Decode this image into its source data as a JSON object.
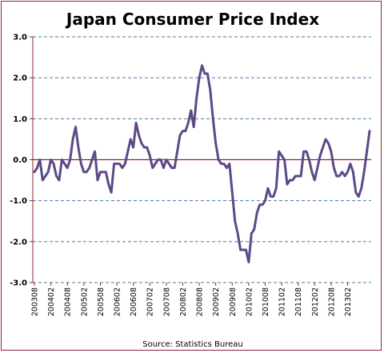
{
  "chart_data": {
    "type": "line",
    "title": "Japan Consumer Price Index",
    "source": "Source: Statistics Bureau",
    "xlabel": "",
    "ylabel": "",
    "ylim": [
      -3.0,
      3.0
    ],
    "yticks": [
      "3.0",
      "2.0",
      "1.0",
      "0.0",
      "-1.0",
      "-2.0",
      "-3.0"
    ],
    "ytick_values": [
      3,
      2,
      1,
      0,
      -1,
      -2,
      -3
    ],
    "xticks": [
      "200308",
      "200402",
      "200408",
      "200502",
      "200508",
      "200602",
      "200608",
      "200702",
      "200708",
      "200802",
      "200808",
      "200902",
      "200908",
      "201002",
      "201008",
      "201102",
      "201108",
      "201202",
      "201208",
      "201302"
    ],
    "grid": "horizontal-dashed",
    "zero_line_color": "#8b2530",
    "line_color": "#5b4a87",
    "grid_color": "#4a7ba6",
    "x_start": "2003-08",
    "x_end": "2013-08",
    "series": [
      {
        "name": "",
        "values": [
          -0.3,
          -0.2,
          0.0,
          -0.5,
          -0.4,
          -0.3,
          0.0,
          -0.1,
          -0.4,
          -0.5,
          0.0,
          -0.1,
          -0.2,
          0.0,
          0.5,
          0.8,
          0.3,
          -0.1,
          -0.3,
          -0.3,
          -0.2,
          0.0,
          0.2,
          -0.5,
          -0.3,
          -0.3,
          -0.3,
          -0.6,
          -0.8,
          -0.1,
          -0.1,
          -0.1,
          -0.2,
          -0.1,
          0.2,
          0.5,
          0.3,
          0.9,
          0.6,
          0.4,
          0.3,
          0.3,
          0.1,
          -0.2,
          -0.1,
          0.0,
          0.0,
          -0.2,
          0.0,
          -0.1,
          -0.2,
          -0.2,
          0.2,
          0.6,
          0.7,
          0.7,
          0.9,
          1.2,
          0.8,
          1.5,
          2.0,
          2.3,
          2.1,
          2.1,
          1.7,
          1.0,
          0.4,
          0.0,
          -0.1,
          -0.1,
          -0.2,
          -0.1,
          -0.8,
          -1.5,
          -1.8,
          -2.2,
          -2.2,
          -2.2,
          -2.5,
          -1.8,
          -1.7,
          -1.3,
          -1.1,
          -1.1,
          -1.0,
          -0.7,
          -0.9,
          -0.9,
          -0.7,
          0.2,
          0.1,
          0.0,
          -0.6,
          -0.5,
          -0.5,
          -0.4,
          -0.4,
          -0.4,
          0.2,
          0.2,
          0.0,
          -0.3,
          -0.5,
          -0.2,
          0.1,
          0.3,
          0.5,
          0.4,
          0.2,
          -0.2,
          -0.4,
          -0.4,
          -0.3,
          -0.4,
          -0.3,
          -0.1,
          -0.3,
          -0.8,
          -0.9,
          -0.7,
          -0.3,
          0.2,
          0.7
        ]
      }
    ]
  }
}
